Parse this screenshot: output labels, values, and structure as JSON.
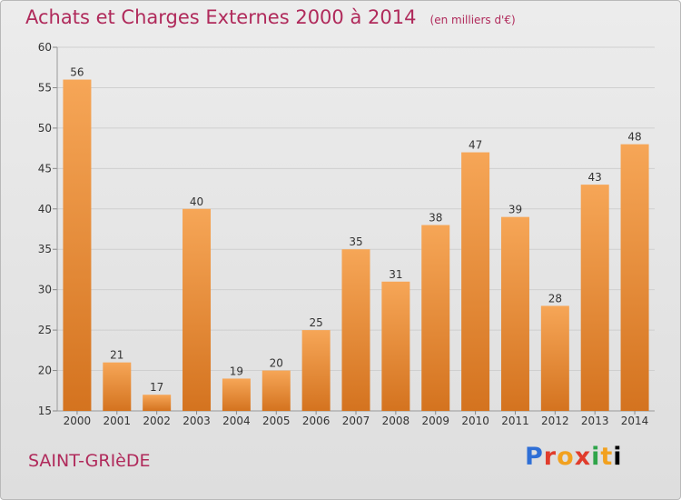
{
  "header": {
    "title": "Achats et Charges Externes 2000 à 2014",
    "unit": "(en milliers d'€)"
  },
  "footer": {
    "commune": "SAINT-GRIèDE",
    "logo_text": "Proxiti"
  },
  "colors": {
    "bar_light": "#f6a657",
    "bar_dark": "#d4731f",
    "title": "#b02a5b",
    "grid": "#cfcfcf"
  },
  "chart_data": {
    "type": "bar",
    "title": "Achats et Charges Externes 2000 à 2014",
    "subtitle": "(en milliers d'€)",
    "categories": [
      "2000",
      "2001",
      "2002",
      "2003",
      "2004",
      "2005",
      "2006",
      "2007",
      "2008",
      "2009",
      "2010",
      "2011",
      "2012",
      "2013",
      "2014"
    ],
    "values": [
      56,
      21,
      17,
      40,
      19,
      20,
      25,
      35,
      31,
      38,
      47,
      39,
      28,
      43,
      48
    ],
    "ylim": [
      15,
      60
    ],
    "yticks": [
      15,
      20,
      25,
      30,
      35,
      40,
      45,
      50,
      55,
      60
    ],
    "grid": true,
    "data_labels": true
  }
}
